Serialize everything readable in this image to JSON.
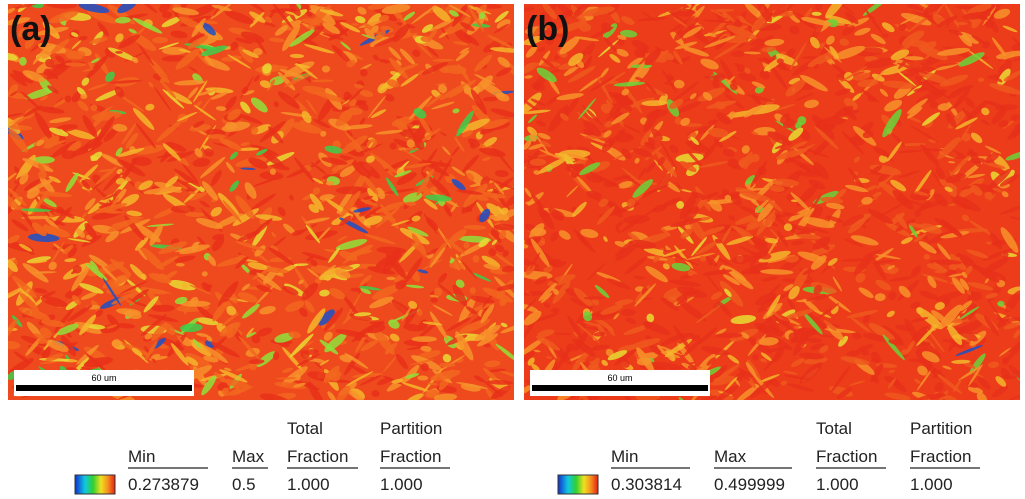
{
  "panels": [
    {
      "label": "(a)",
      "scale_bar": "60 um",
      "legend": {
        "header_top": [
          "Total",
          "Partition"
        ],
        "header": [
          "Min",
          "Max",
          "Fraction",
          "Fraction"
        ],
        "values": [
          "0.273879",
          "0.5",
          "1.000",
          "1.000"
        ]
      }
    },
    {
      "label": "(b)",
      "scale_bar": "60 um",
      "legend": {
        "header_top": [
          "Total",
          "Partition"
        ],
        "header": [
          "Min",
          "Max",
          "Fraction",
          "Fraction"
        ],
        "values": [
          "0.303814",
          "0.499999",
          "1.000",
          "1.000"
        ]
      }
    }
  ]
}
